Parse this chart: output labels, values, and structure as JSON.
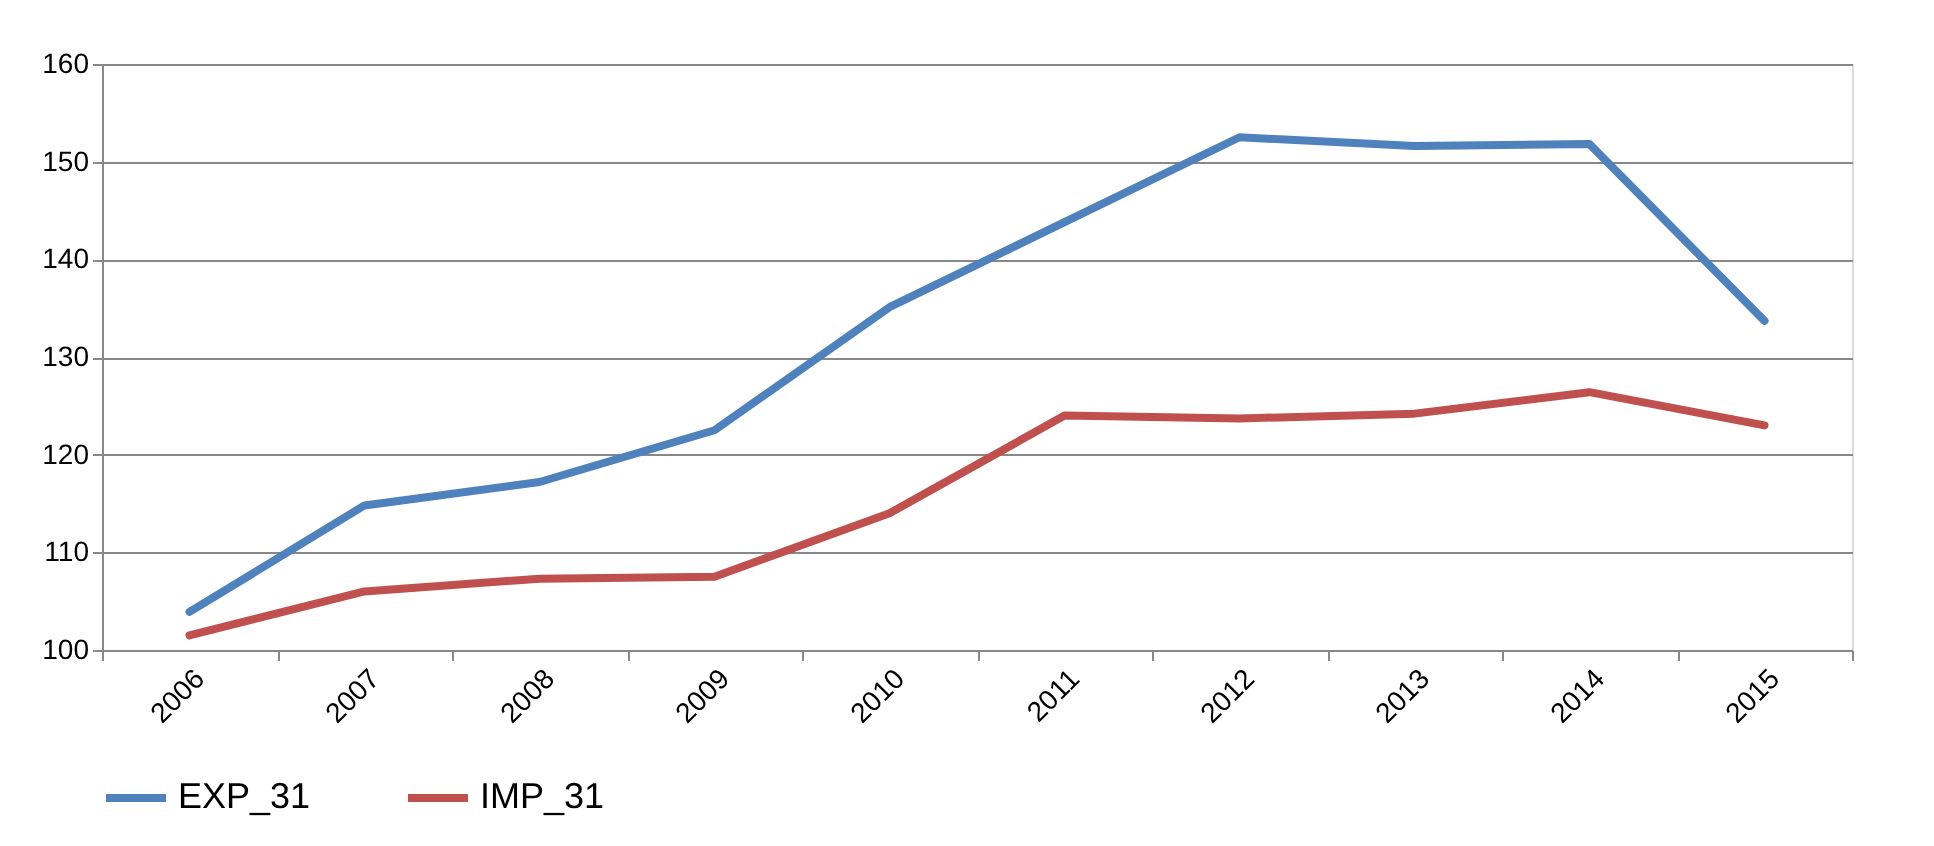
{
  "chart_data": {
    "type": "line",
    "categories": [
      "2006",
      "2007",
      "2008",
      "2009",
      "2010",
      "2011",
      "2012",
      "2013",
      "2014",
      "2015"
    ],
    "series": [
      {
        "name": "EXP_31",
        "color": "#4f81bd",
        "values": [
          103.9,
          114.8,
          117.2,
          122.5,
          135.1,
          143.8,
          152.5,
          151.6,
          151.8,
          133.7
        ]
      },
      {
        "name": "IMP_31",
        "color": "#c0504d",
        "values": [
          101.5,
          106.0,
          107.3,
          107.5,
          114.0,
          124.0,
          123.7,
          124.2,
          126.4,
          123.0
        ]
      }
    ],
    "ylim": [
      100,
      160
    ],
    "yticks": [
      100,
      110,
      120,
      130,
      140,
      150,
      160
    ],
    "grid": "y",
    "legend": "bottom"
  }
}
